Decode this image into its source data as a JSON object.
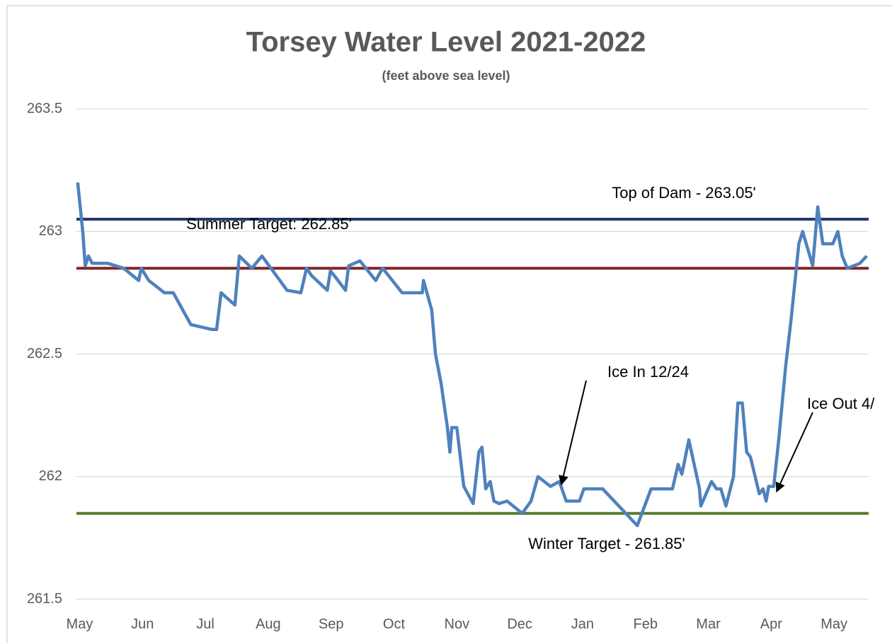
{
  "chart_data": {
    "type": "line",
    "title": "Torsey Water Level 2021-2022",
    "subtitle": "(feet above sea level)",
    "x": [
      -0.03,
      0.05,
      0.09,
      0.14,
      0.2,
      0.45,
      0.7,
      0.94,
      0.98,
      1.1,
      1.35,
      1.49,
      1.77,
      2.11,
      2.18,
      2.25,
      2.47,
      2.54,
      2.74,
      2.9,
      3.3,
      3.52,
      3.61,
      3.69,
      3.94,
      3.99,
      4.23,
      4.28,
      4.46,
      4.71,
      4.82,
      5.13,
      5.45,
      5.47,
      5.6,
      5.66,
      5.75,
      5.85,
      5.89,
      5.92,
      6.0,
      6.11,
      6.26,
      6.35,
      6.4,
      6.46,
      6.53,
      6.59,
      6.67,
      6.8,
      7.04,
      7.18,
      7.29,
      7.49,
      7.63,
      7.74,
      7.95,
      8.02,
      8.32,
      8.87,
      9.09,
      9.43,
      9.52,
      9.58,
      9.69,
      9.86,
      9.88,
      10.05,
      10.13,
      10.2,
      10.28,
      10.4,
      10.47,
      10.54,
      10.61,
      10.67,
      10.81,
      10.87,
      10.92,
      10.96,
      11.04,
      11.12,
      11.23,
      11.32,
      11.44,
      11.5,
      11.66,
      11.74,
      11.82,
      11.98,
      12.06,
      12.13,
      12.21,
      12.41,
      12.52
    ],
    "values": [
      263.2,
      263.0,
      262.86,
      262.9,
      262.87,
      262.87,
      262.85,
      262.8,
      262.85,
      262.8,
      262.75,
      262.75,
      262.62,
      262.6,
      262.6,
      262.75,
      262.7,
      262.9,
      262.85,
      262.9,
      262.76,
      262.75,
      262.85,
      262.82,
      262.76,
      262.84,
      262.76,
      262.86,
      262.88,
      262.8,
      262.85,
      262.75,
      262.75,
      262.8,
      262.68,
      262.5,
      262.38,
      262.2,
      262.1,
      262.2,
      262.2,
      261.96,
      261.89,
      262.1,
      262.12,
      261.95,
      261.98,
      261.9,
      261.89,
      261.9,
      261.85,
      261.9,
      262.0,
      261.96,
      261.98,
      261.9,
      261.9,
      261.95,
      261.95,
      261.8,
      261.95,
      261.95,
      262.05,
      262.01,
      262.15,
      261.95,
      261.88,
      261.98,
      261.95,
      261.95,
      261.88,
      262.0,
      262.3,
      262.3,
      262.1,
      262.08,
      261.93,
      261.95,
      261.9,
      261.96,
      261.96,
      262.15,
      262.45,
      262.65,
      262.95,
      263.0,
      262.86,
      263.1,
      262.95,
      262.95,
      263.0,
      262.9,
      262.85,
      262.87,
      262.9
    ],
    "color": "#4f81bd",
    "xlim": [
      -0.05,
      12.55
    ],
    "xticks": [
      {
        "value": 0,
        "label": "May"
      },
      {
        "value": 1,
        "label": "Jun"
      },
      {
        "value": 2,
        "label": "Jul"
      },
      {
        "value": 3,
        "label": "Aug"
      },
      {
        "value": 4,
        "label": "Sep"
      },
      {
        "value": 5,
        "label": "Oct"
      },
      {
        "value": 6,
        "label": "Nov"
      },
      {
        "value": 7,
        "label": "Dec"
      },
      {
        "value": 8,
        "label": "Jan"
      },
      {
        "value": 9,
        "label": "Feb"
      },
      {
        "value": 10,
        "label": "Mar"
      },
      {
        "value": 11,
        "label": "Apr"
      },
      {
        "value": 12,
        "label": "May"
      }
    ],
    "ylim": [
      261.5,
      263.5
    ],
    "yticks": [
      {
        "value": 261.5,
        "label": "261.5"
      },
      262,
      {
        "value": 262.5,
        "label": "262.5"
      },
      263,
      {
        "value": 263.5,
        "label": "263.5"
      }
    ],
    "grid": true,
    "reference_lines": [
      {
        "label": "Top of Dam - 263.05'",
        "value": 263.05,
        "color": "#1f3864"
      },
      {
        "label": "Summer Target: 262.85'",
        "value": 262.85,
        "color": "#7f2626"
      },
      {
        "label": "Winter Target - 261.85'",
        "value": 261.85,
        "color": "#5a7a2e"
      }
    ],
    "annotations": [
      {
        "text": "Ice In 12/24"
      },
      {
        "text": "Ice Out 4/"
      }
    ]
  }
}
